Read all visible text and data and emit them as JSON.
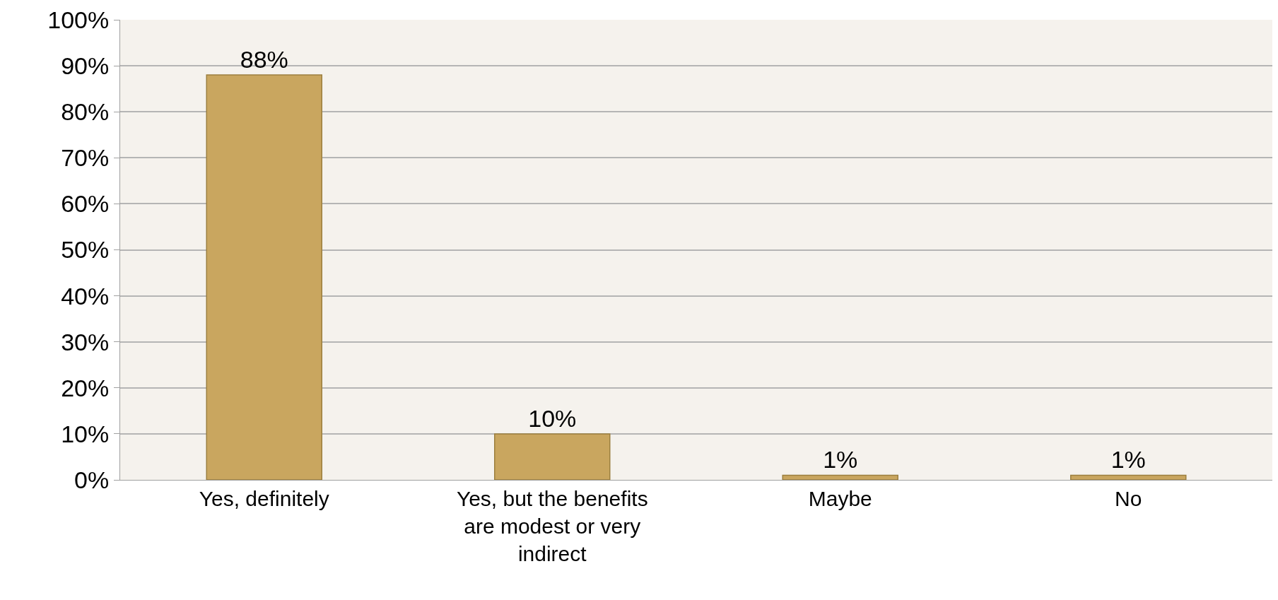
{
  "chart_data": {
    "type": "bar",
    "categories": [
      "Yes, definitely",
      "Yes, but the benefits are modest or very indirect",
      "Maybe",
      "No"
    ],
    "values": [
      88,
      10,
      1,
      1
    ],
    "value_labels": [
      "88%",
      "10%",
      "1%",
      "1%"
    ],
    "color": "#c9a65f",
    "ylim": [
      0,
      100
    ],
    "yticks": [
      {
        "value": 0,
        "label": "0%"
      },
      {
        "value": 10,
        "label": "10%"
      },
      {
        "value": 20,
        "label": "20%"
      },
      {
        "value": 30,
        "label": "30%"
      },
      {
        "value": 40,
        "label": "40%"
      },
      {
        "value": 50,
        "label": "50%"
      },
      {
        "value": 60,
        "label": "60%"
      },
      {
        "value": 70,
        "label": "70%"
      },
      {
        "value": 80,
        "label": "80%"
      },
      {
        "value": 90,
        "label": "90%"
      },
      {
        "value": 100,
        "label": "100%"
      }
    ],
    "grid": "y"
  }
}
